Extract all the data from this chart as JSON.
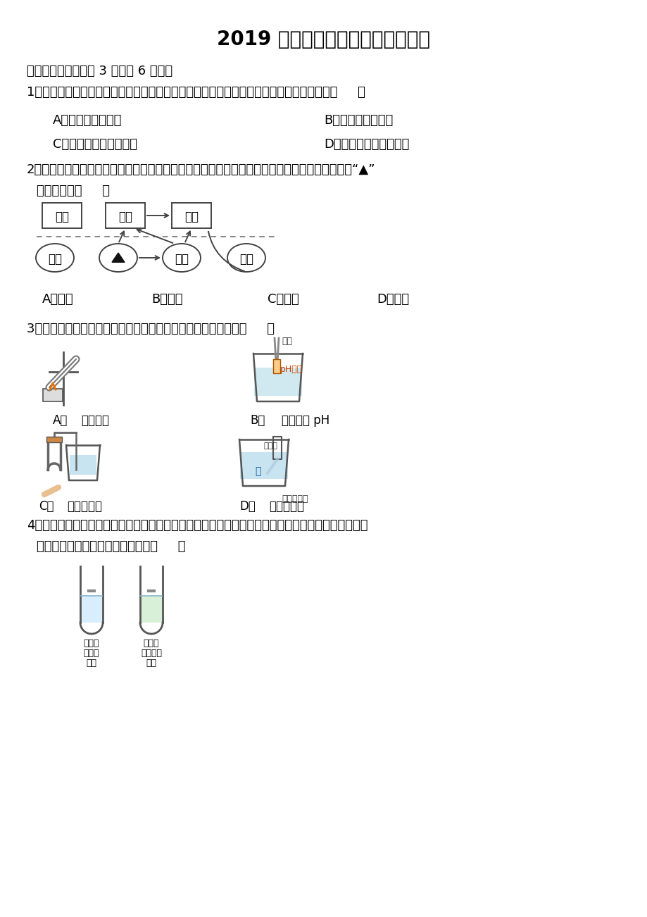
{
  "title": "2019 年浙江省金华市中考化学试卷",
  "bg_color": "#ffffff",
  "text_color": "#000000",
  "section1": "一、选择题（每小题 3 分，共 6 小题）",
  "q1": "1．生活垃圾通常可分为可回收物、有害垃圾、其他垃圾三类。处置矿泉水瓶的正确方法是（     ）",
  "q1_A": "A．扔进有害垃圾桶",
  "q1_B": "B．扔进其他垃圾桶",
  "q1_C": "C．扔进可回收物垃圾桶",
  "q1_D": "D．看到垃圾桶就扔进去",
  "q2_line1": "2．思维导图有助于建构知识，如图是小金建立的有关物质宏观组成和微观构成的思维导图，其中“▲”",
  "q2_line2": "应填入的是（     ）",
  "q2_A": "A．原子",
  "q2_B": "B．中子",
  "q2_C": "C．电子",
  "q2_D": "D．质子",
  "q3": "3．规范的操作是实验成功的基本保证，下列实验操作规范的是（     ）",
  "q3_A_text": "加热液体",
  "q3_B_text": "测试溶液 pH",
  "q3_B_label1": "镊子",
  "q3_B_label2": "pH试纸",
  "q3_C_text": "气密性检查",
  "q3_D_text": "水",
  "q3_D_label1": "浓硫酸",
  "q3_D_label2": "稀释浓硫酸",
  "q4_line1": "4．小丽为确认所回收易拉罐的主要成分是铝还是铁，剪取金属片打磨后，设计了如图所示的两种不同",
  "q4_line2": "方法进行检验，这样设计的依据是（     ）",
  "q4_t1_label1": "金属片",
  "q4_t1_label2": "氯化锥",
  "q4_t1_label3": "溶液",
  "q4_t2_label1": "金属片",
  "q4_t2_label2": "氯化亚鐵",
  "q4_t2_label3": "溶液"
}
